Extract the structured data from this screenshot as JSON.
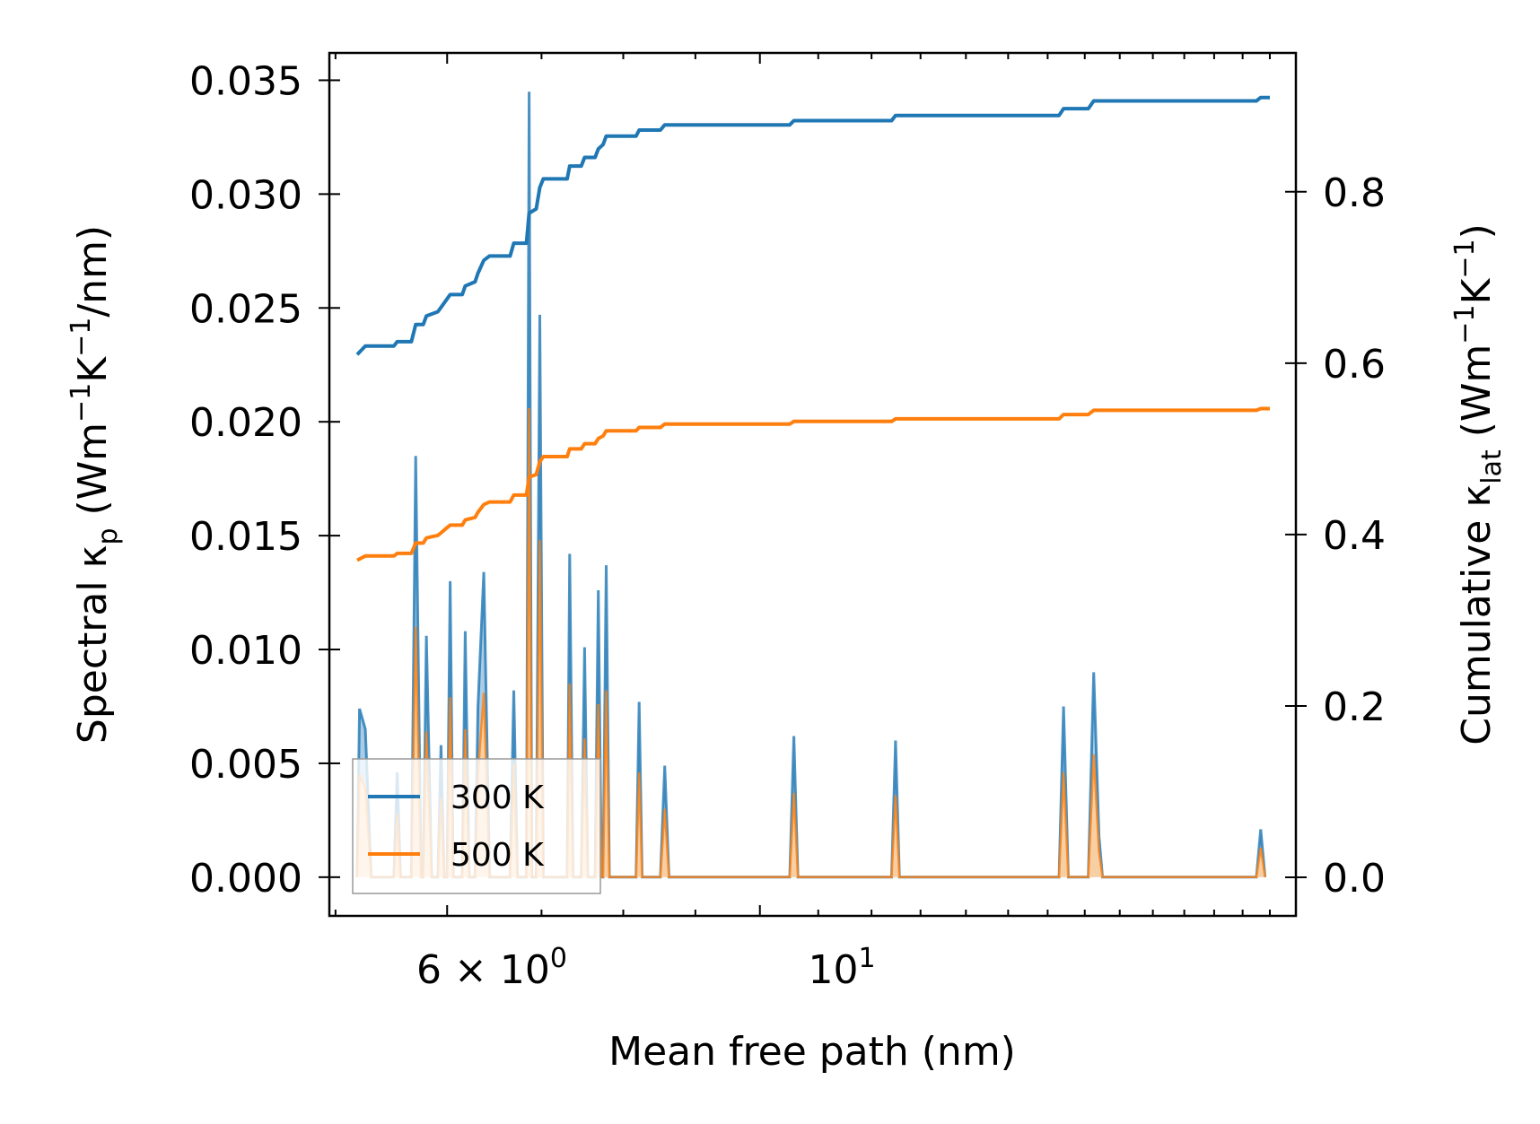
{
  "chart_data": {
    "type": "line",
    "xlabel": "Mean free path (nm)",
    "ylabel_left": {
      "text": "Spectral κ",
      "sub": "p",
      "unit_open": " (Wm",
      "sup1": "−1",
      "mid": "K",
      "sup2": "−1",
      "unit_close": "/nm)"
    },
    "ylabel_right": {
      "text": "Cumulative κ",
      "sub": "lat",
      "unit_open": " (Wm",
      "sup1": "−1",
      "mid": "K",
      "sup2": "−1",
      "unit_close": ")"
    },
    "x_scale": "log",
    "xlim": [
      4.95,
      24.0
    ],
    "x_ticks": [
      {
        "value": 6,
        "base": "6",
        "times": " × ",
        "pow_base": "10",
        "exp": "0"
      },
      {
        "value": 10,
        "pow_base": "10",
        "exp": "1"
      }
    ],
    "ylim_left": [
      -0.0017,
      0.0362
    ],
    "yticks_left": [
      "0.000",
      "0.005",
      "0.010",
      "0.015",
      "0.020",
      "0.025",
      "0.030",
      "0.035"
    ],
    "ylim_right": [
      -0.045,
      0.962
    ],
    "yticks_right": [
      "0.0",
      "0.2",
      "0.4",
      "0.6",
      "0.8"
    ],
    "legend": {
      "placement": "lower-left",
      "entries": [
        "300 K",
        "500 K"
      ]
    },
    "colors": {
      "s300": "#1f77b4",
      "s500": "#ff7f0e",
      "fill300": "#9cc3e0",
      "fill500": "#ffcf9d"
    },
    "spectral": [
      {
        "name": "300 K",
        "points": [
          [
            5.18,
            0.0
          ],
          [
            5.2,
            0.0074
          ],
          [
            5.25,
            0.0065
          ],
          [
            5.3,
            0.0
          ],
          [
            5.5,
            0.0
          ],
          [
            5.53,
            0.0046
          ],
          [
            5.56,
            0.0
          ],
          [
            5.66,
            0.0
          ],
          [
            5.7,
            0.0185
          ],
          [
            5.75,
            0.0
          ],
          [
            5.77,
            0.0
          ],
          [
            5.8,
            0.0106
          ],
          [
            5.85,
            0.0
          ],
          [
            5.91,
            0.0
          ],
          [
            5.94,
            0.0058
          ],
          [
            5.97,
            0.0
          ],
          [
            6.0,
            0.0
          ],
          [
            6.03,
            0.013
          ],
          [
            6.06,
            0.0
          ],
          [
            6.15,
            0.0
          ],
          [
            6.18,
            0.0108
          ],
          [
            6.22,
            0.0
          ],
          [
            6.28,
            0.0
          ],
          [
            6.31,
            0.0075
          ],
          [
            6.37,
            0.0134
          ],
          [
            6.43,
            0.0
          ],
          [
            6.65,
            0.0
          ],
          [
            6.69,
            0.0082
          ],
          [
            6.73,
            0.0
          ],
          [
            6.83,
            0.0
          ],
          [
            6.86,
            0.0345
          ],
          [
            6.89,
            0.0
          ],
          [
            6.94,
            0.0
          ],
          [
            6.98,
            0.0247
          ],
          [
            7.02,
            0.0
          ],
          [
            7.3,
            0.0
          ],
          [
            7.33,
            0.0142
          ],
          [
            7.37,
            0.0
          ],
          [
            7.47,
            0.0
          ],
          [
            7.51,
            0.0101
          ],
          [
            7.55,
            0.0
          ],
          [
            7.64,
            0.0
          ],
          [
            7.68,
            0.0126
          ],
          [
            7.72,
            0.0
          ],
          [
            7.74,
            0.0
          ],
          [
            7.78,
            0.0137
          ],
          [
            7.82,
            0.0
          ],
          [
            8.17,
            0.0
          ],
          [
            8.21,
            0.0077
          ],
          [
            8.25,
            0.0
          ],
          [
            8.5,
            0.0
          ],
          [
            8.56,
            0.0049
          ],
          [
            8.62,
            0.0
          ],
          [
            10.5,
            0.0
          ],
          [
            10.57,
            0.0062
          ],
          [
            10.64,
            0.0
          ],
          [
            12.4,
            0.0
          ],
          [
            12.48,
            0.006
          ],
          [
            12.56,
            0.0
          ],
          [
            16.3,
            0.0
          ],
          [
            16.42,
            0.0075
          ],
          [
            16.55,
            0.0
          ],
          [
            17.1,
            0.0
          ],
          [
            17.25,
            0.009
          ],
          [
            17.4,
            0.0018
          ],
          [
            17.5,
            0.0
          ],
          [
            22.5,
            0.0
          ],
          [
            22.66,
            0.0021
          ],
          [
            22.82,
            0.0
          ]
        ]
      },
      {
        "name": "500 K",
        "points": [
          [
            5.18,
            0.0
          ],
          [
            5.2,
            0.0045
          ],
          [
            5.25,
            0.0039
          ],
          [
            5.3,
            0.0
          ],
          [
            5.5,
            0.0
          ],
          [
            5.53,
            0.0028
          ],
          [
            5.56,
            0.0
          ],
          [
            5.66,
            0.0
          ],
          [
            5.7,
            0.011
          ],
          [
            5.75,
            0.0
          ],
          [
            5.77,
            0.0
          ],
          [
            5.8,
            0.0064
          ],
          [
            5.85,
            0.0
          ],
          [
            5.91,
            0.0
          ],
          [
            5.94,
            0.0035
          ],
          [
            5.97,
            0.0
          ],
          [
            6.0,
            0.0
          ],
          [
            6.03,
            0.0079
          ],
          [
            6.06,
            0.0
          ],
          [
            6.15,
            0.0
          ],
          [
            6.18,
            0.0065
          ],
          [
            6.22,
            0.0
          ],
          [
            6.28,
            0.0
          ],
          [
            6.31,
            0.0045
          ],
          [
            6.37,
            0.0081
          ],
          [
            6.43,
            0.0
          ],
          [
            6.65,
            0.0
          ],
          [
            6.69,
            0.005
          ],
          [
            6.73,
            0.0
          ],
          [
            6.83,
            0.0
          ],
          [
            6.86,
            0.0206
          ],
          [
            6.89,
            0.0
          ],
          [
            6.94,
            0.0
          ],
          [
            6.98,
            0.0148
          ],
          [
            7.02,
            0.0
          ],
          [
            7.3,
            0.0
          ],
          [
            7.33,
            0.0085
          ],
          [
            7.37,
            0.0
          ],
          [
            7.47,
            0.0
          ],
          [
            7.51,
            0.0061
          ],
          [
            7.55,
            0.0
          ],
          [
            7.64,
            0.0
          ],
          [
            7.68,
            0.0076
          ],
          [
            7.72,
            0.0
          ],
          [
            7.74,
            0.0
          ],
          [
            7.78,
            0.0082
          ],
          [
            7.82,
            0.0
          ],
          [
            8.17,
            0.0
          ],
          [
            8.21,
            0.0046
          ],
          [
            8.25,
            0.0
          ],
          [
            8.5,
            0.0
          ],
          [
            8.56,
            0.003
          ],
          [
            8.62,
            0.0
          ],
          [
            10.5,
            0.0
          ],
          [
            10.57,
            0.0037
          ],
          [
            10.64,
            0.0
          ],
          [
            12.4,
            0.0
          ],
          [
            12.48,
            0.0036
          ],
          [
            12.56,
            0.0
          ],
          [
            16.3,
            0.0
          ],
          [
            16.42,
            0.0046
          ],
          [
            16.55,
            0.0
          ],
          [
            17.1,
            0.0
          ],
          [
            17.25,
            0.0054
          ],
          [
            17.4,
            0.0011
          ],
          [
            17.5,
            0.0
          ],
          [
            22.5,
            0.0
          ],
          [
            22.66,
            0.0013
          ],
          [
            22.82,
            0.0
          ]
        ]
      }
    ],
    "cumulative": [
      {
        "name": "300 K",
        "points": [
          [
            5.18,
            0.61
          ],
          [
            5.25,
            0.62
          ],
          [
            5.5,
            0.62
          ],
          [
            5.53,
            0.625
          ],
          [
            5.66,
            0.625
          ],
          [
            5.7,
            0.645
          ],
          [
            5.77,
            0.645
          ],
          [
            5.8,
            0.655
          ],
          [
            5.91,
            0.66
          ],
          [
            5.94,
            0.665
          ],
          [
            6.0,
            0.675
          ],
          [
            6.03,
            0.68
          ],
          [
            6.15,
            0.68
          ],
          [
            6.18,
            0.69
          ],
          [
            6.28,
            0.695
          ],
          [
            6.31,
            0.705
          ],
          [
            6.37,
            0.72
          ],
          [
            6.43,
            0.725
          ],
          [
            6.65,
            0.725
          ],
          [
            6.69,
            0.74
          ],
          [
            6.83,
            0.74
          ],
          [
            6.86,
            0.775
          ],
          [
            6.94,
            0.78
          ],
          [
            6.98,
            0.805
          ],
          [
            7.02,
            0.815
          ],
          [
            7.3,
            0.815
          ],
          [
            7.33,
            0.83
          ],
          [
            7.47,
            0.83
          ],
          [
            7.51,
            0.84
          ],
          [
            7.64,
            0.84
          ],
          [
            7.68,
            0.85
          ],
          [
            7.74,
            0.855
          ],
          [
            7.78,
            0.865
          ],
          [
            8.17,
            0.865
          ],
          [
            8.21,
            0.872
          ],
          [
            8.5,
            0.872
          ],
          [
            8.56,
            0.878
          ],
          [
            10.5,
            0.878
          ],
          [
            10.57,
            0.883
          ],
          [
            12.4,
            0.883
          ],
          [
            12.48,
            0.889
          ],
          [
            16.3,
            0.889
          ],
          [
            16.42,
            0.897
          ],
          [
            17.1,
            0.897
          ],
          [
            17.25,
            0.906
          ],
          [
            22.5,
            0.906
          ],
          [
            22.66,
            0.91
          ],
          [
            23.0,
            0.91
          ]
        ]
      },
      {
        "name": "500 K",
        "points": [
          [
            5.18,
            0.37
          ],
          [
            5.25,
            0.375
          ],
          [
            5.5,
            0.375
          ],
          [
            5.53,
            0.378
          ],
          [
            5.66,
            0.378
          ],
          [
            5.7,
            0.39
          ],
          [
            5.77,
            0.39
          ],
          [
            5.8,
            0.396
          ],
          [
            5.91,
            0.399
          ],
          [
            5.94,
            0.402
          ],
          [
            6.0,
            0.408
          ],
          [
            6.03,
            0.411
          ],
          [
            6.15,
            0.411
          ],
          [
            6.18,
            0.417
          ],
          [
            6.28,
            0.42
          ],
          [
            6.31,
            0.426
          ],
          [
            6.37,
            0.435
          ],
          [
            6.43,
            0.438
          ],
          [
            6.65,
            0.438
          ],
          [
            6.69,
            0.446
          ],
          [
            6.83,
            0.446
          ],
          [
            6.86,
            0.467
          ],
          [
            6.94,
            0.47
          ],
          [
            6.98,
            0.485
          ],
          [
            7.02,
            0.491
          ],
          [
            7.3,
            0.491
          ],
          [
            7.33,
            0.5
          ],
          [
            7.47,
            0.5
          ],
          [
            7.51,
            0.506
          ],
          [
            7.64,
            0.506
          ],
          [
            7.68,
            0.512
          ],
          [
            7.74,
            0.515
          ],
          [
            7.78,
            0.521
          ],
          [
            8.17,
            0.521
          ],
          [
            8.21,
            0.525
          ],
          [
            8.5,
            0.525
          ],
          [
            8.56,
            0.529
          ],
          [
            10.5,
            0.529
          ],
          [
            10.57,
            0.532
          ],
          [
            12.4,
            0.532
          ],
          [
            12.48,
            0.535
          ],
          [
            16.3,
            0.535
          ],
          [
            16.42,
            0.54
          ],
          [
            17.1,
            0.54
          ],
          [
            17.25,
            0.545
          ],
          [
            22.5,
            0.545
          ],
          [
            22.66,
            0.547
          ],
          [
            23.0,
            0.547
          ]
        ]
      }
    ]
  }
}
